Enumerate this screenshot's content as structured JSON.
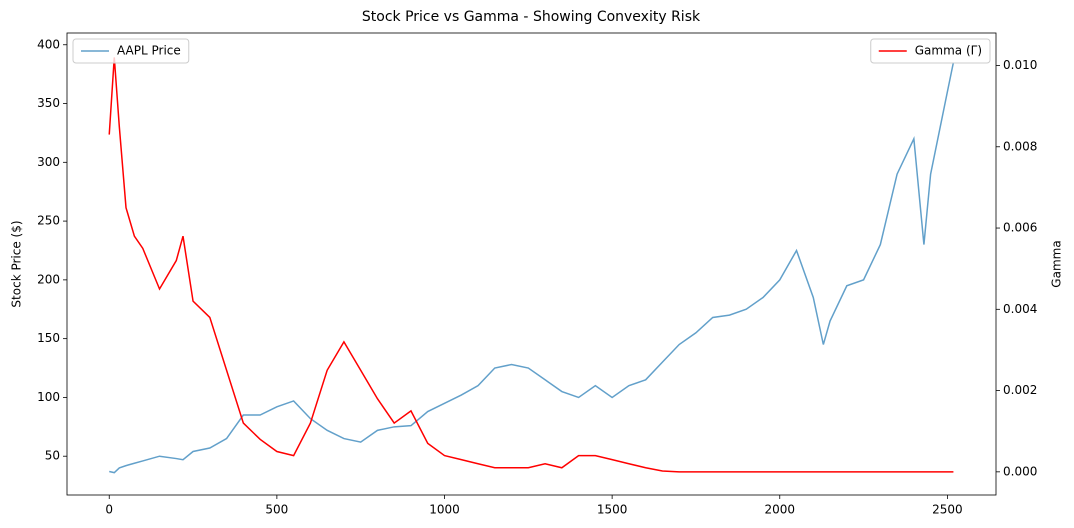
{
  "chart_data": {
    "type": "line",
    "title": "Stock Price vs Gamma - Showing Convexity Risk",
    "ylabel": "Stock Price ($)",
    "y2label": "Gamma",
    "x": [
      0,
      15,
      30,
      50,
      75,
      100,
      150,
      200,
      220,
      250,
      300,
      350,
      400,
      450,
      500,
      550,
      600,
      650,
      700,
      750,
      800,
      850,
      900,
      950,
      1000,
      1050,
      1100,
      1150,
      1200,
      1250,
      1300,
      1350,
      1400,
      1450,
      1500,
      1550,
      1600,
      1650,
      1700,
      1750,
      1800,
      1850,
      1900,
      1950,
      2000,
      2050,
      2100,
      2130,
      2150,
      2200,
      2250,
      2300,
      2350,
      2400,
      2430,
      2450,
      2500,
      2518
    ],
    "series": [
      {
        "name": "AAPL Price",
        "color": "#1f77b4",
        "alpha": 0.7,
        "legend_loc": "upper left",
        "values": [
          37,
          36,
          40,
          42,
          44,
          46,
          50,
          48,
          47,
          54,
          57,
          65,
          85,
          85,
          92,
          97,
          82,
          72,
          65,
          62,
          72,
          75,
          76,
          88,
          95,
          102,
          110,
          125,
          128,
          125,
          115,
          105,
          100,
          110,
          100,
          110,
          115,
          130,
          145,
          155,
          168,
          170,
          175,
          185,
          200,
          225,
          185,
          145,
          165,
          195,
          200,
          230,
          290,
          320,
          230,
          290,
          360,
          385
        ]
      },
      {
        "name": "Gamma (Γ)",
        "color": "#ff0000",
        "alpha": 1,
        "axis": "y2",
        "legend_loc": "upper right",
        "values": [
          0.0083,
          0.0102,
          0.0085,
          0.0065,
          0.0058,
          0.0055,
          0.0045,
          0.0052,
          0.0058,
          0.0042,
          0.0038,
          0.0025,
          0.0012,
          0.0008,
          0.0005,
          0.0004,
          0.0012,
          0.0025,
          0.0032,
          0.0025,
          0.0018,
          0.0012,
          0.0015,
          0.0007,
          0.0004,
          0.0003,
          0.0002,
          0.0001,
          0.0001,
          0.0001,
          0.0002,
          0.0001,
          0.0004,
          0.0004,
          0.0003,
          0.0002,
          0.0001,
          2e-05,
          0,
          0,
          0,
          0,
          0,
          0,
          0,
          0,
          0,
          0,
          0,
          0,
          0,
          0,
          0,
          0,
          0,
          0,
          0,
          0
        ]
      }
    ],
    "xlim": [
      -126,
      2645
    ],
    "xticks": [
      0,
      500,
      1000,
      1500,
      2000,
      2500
    ],
    "ylim": [
      17,
      410
    ],
    "yticks": [
      50,
      100,
      150,
      200,
      250,
      300,
      350,
      400
    ],
    "y2lim": [
      -0.00057,
      0.0108
    ],
    "y2ticks": [
      {
        "value": 0,
        "label": "0.000"
      },
      {
        "value": 0.002,
        "label": "0.002"
      },
      {
        "value": 0.004,
        "label": "0.004"
      },
      {
        "value": 0.006,
        "label": "0.006"
      },
      {
        "value": 0.008,
        "label": "0.008"
      },
      {
        "value": 0.01,
        "label": "0.010"
      }
    ]
  }
}
